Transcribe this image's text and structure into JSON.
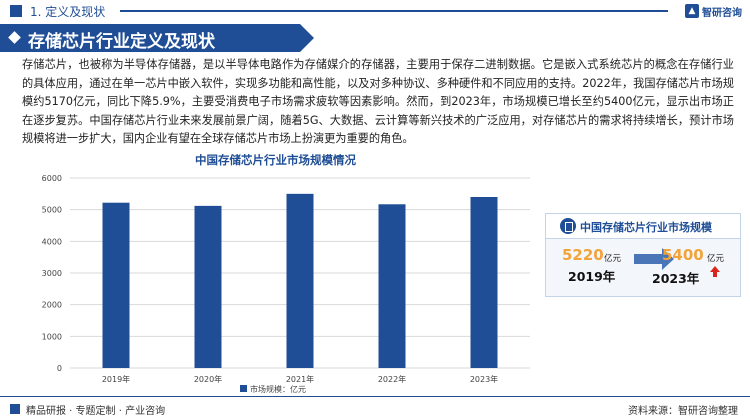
{
  "header": {
    "section_label": "1. 定义及现状",
    "logo_text": "智研咨询"
  },
  "banner": {
    "title": "存储芯片行业定义及现状"
  },
  "body_text": "存储芯片，也被称为半导体存储器，是以半导体电路作为存储媒介的存储器，主要用于保存二进制数据。它是嵌入式系统芯片的概念在存储行业的具体应用，通过在单一芯片中嵌入软件，实现多功能和高性能，以及对多种协议、多种硬件和不同应用的支持。2022年，我国存储芯片市场规模约5170亿元，同比下降5.9%，主要受消费电子市场需求疲软等因素影响。然而，到2023年，市场规模已增长至约5400亿元，显示出市场正在逐步复苏。中国存储芯片行业未来发展前景广阔，随着5G、大数据、云计算等新兴技术的广泛应用，对存储芯片的需求将持续增长，预计市场规模将进一步扩大，国内企业有望在全球存储芯片市场上扮演更为重要的角色。",
  "chart_data": {
    "type": "bar",
    "title": "中国存储芯片行业市场规模情况",
    "categories": [
      "2019年",
      "2020年",
      "2021年",
      "2022年",
      "2023年"
    ],
    "series": [
      {
        "name": "市场规模：亿元",
        "values": [
          5220,
          5120,
          5500,
          5170,
          5400
        ]
      }
    ],
    "ylim": [
      0,
      6000
    ],
    "yticks": [
      0,
      1000,
      2000,
      3000,
      4000,
      5000,
      6000
    ],
    "grid": true,
    "legend": "bottom",
    "bar_color": "#1f4e96"
  },
  "side_panel": {
    "title": "中国存储芯片行业市场规模",
    "from_value": "5220",
    "from_unit": "亿元",
    "from_year": "2019年",
    "to_value": "5400",
    "to_unit": "亿元",
    "to_year": "2023年"
  },
  "footer": {
    "tagline": "精品研报 · 专题定制 · 产业咨询",
    "source": "资料来源：智研咨询整理"
  },
  "colors": {
    "brand": "#1f4e96",
    "highlight": "#f2a33a",
    "up_arrow": "#d9261c"
  }
}
